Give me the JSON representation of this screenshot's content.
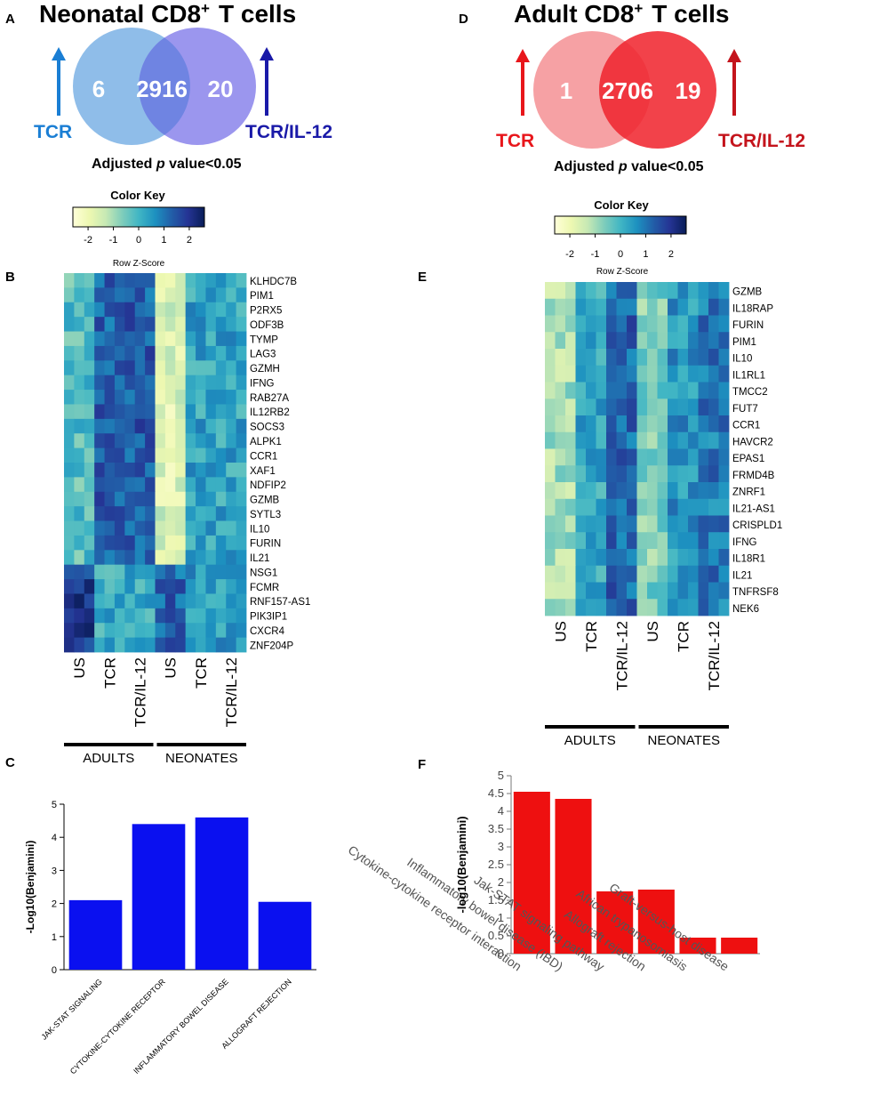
{
  "panels": {
    "a": "A",
    "b": "B",
    "c": "C",
    "d": "D",
    "e": "E",
    "f": "F"
  },
  "colors": {
    "tcr_neo": "#1a7ed4",
    "tcril12_neo": "#1a1aa8",
    "tcr_adult": "#e8161b",
    "tcril12_adult": "#c4141c",
    "bar_blue": "#0a10f0",
    "bar_red": "#ee1010",
    "venn_neo_left": "#8fbde9",
    "venn_neo_right": "#9b96ee",
    "venn_neo_mid": "#6f84e2",
    "venn_adult_left": "#f6a1a4",
    "venn_adult_right": "#f2424a",
    "venn_adult_mid": "#f0363f"
  },
  "venn_neonatal": {
    "title": "Neonatal CD8",
    "sup": "+",
    "title_suffix": "T cells",
    "left": "6",
    "overlap": "2916",
    "right": "20",
    "label_left": "TCR",
    "label_right": "TCR/IL-12",
    "pvalue_prefix": "Adjusted ",
    "pvalue_p": "p",
    "pvalue_suffix": " value<0.05"
  },
  "venn_adult": {
    "title": "Adult CD8",
    "sup": "+",
    "title_suffix": "T cells",
    "left": "1",
    "overlap": "2706",
    "right": "19",
    "label_left": "TCR",
    "label_right": "TCR/IL-12",
    "pvalue_prefix": "Adjusted ",
    "pvalue_p": "p",
    "pvalue_suffix": " value<0.05"
  },
  "color_key": {
    "title": "Color Key",
    "ticks": [
      "-2",
      "-1",
      "0",
      "1",
      "2"
    ],
    "xlabel": "Row Z-Score",
    "stops": [
      "#ffffd9",
      "#edf8b1",
      "#c7e9b4",
      "#7fcdbb",
      "#41b6c4",
      "#1d91c0",
      "#225ea8",
      "#253494",
      "#081d58"
    ]
  },
  "heatmap_b": {
    "genes": [
      "KLHDC7B",
      "PIM1",
      "P2RX5",
      "ODF3B",
      "TYMP",
      "LAG3",
      "GZMH",
      "IFNG",
      "RAB27A",
      "IL12RB2",
      "SOCS3",
      "ALPK1",
      "CCR1",
      "XAF1",
      "NDFIP2",
      "GZMB",
      "SYTL3",
      "IL10",
      "FURIN",
      "IL21",
      "NSG1",
      "FCMR",
      "RNF157-AS1",
      "PIK3IP1",
      "CXCR4",
      "ZNF204P"
    ],
    "columns": [
      "US",
      "TCR",
      "TCR/IL-12",
      "US",
      "TCR",
      "TCR/IL-12"
    ],
    "groups": [
      "ADULTS",
      "NEONATES"
    ]
  },
  "heatmap_e": {
    "genes": [
      "GZMB",
      "IL18RAP",
      "FURIN",
      "PIM1",
      "IL10",
      "IL1RL1",
      "TMCC2",
      "FUT7",
      "CCR1",
      "HAVCR2",
      "EPAS1",
      "FRMD4B",
      "ZNRF1",
      "IL21-AS1",
      "CRISPLD1",
      "IFNG",
      "IL18R1",
      "IL21",
      "TNFRSF8",
      "NEK6"
    ],
    "columns": [
      "US",
      "TCR",
      "TCR/IL-12",
      "US",
      "TCR",
      "TCR/IL-12"
    ],
    "groups": [
      "ADULTS",
      "NEONATES"
    ]
  },
  "chart_data": [
    {
      "type": "bar",
      "title": "",
      "xlabel": "",
      "ylabel": "-Log10(Benjamini)",
      "categories": [
        "JAK-STAT SIGNALING",
        "CYTOKINE-CYTOKINE RECEPTOR",
        "INFLAMMATORY BOWEL DISEASE",
        "ALLOGRAFT REJECTION"
      ],
      "values": [
        2.1,
        4.4,
        4.6,
        2.05
      ],
      "ylim": [
        0,
        5
      ],
      "yticks": [
        "0",
        "1",
        "2",
        "3",
        "4",
        "5"
      ]
    },
    {
      "type": "bar",
      "title": "",
      "xlabel": "",
      "ylabel": "-log10(Benjamini)",
      "categories": [
        "Cytokine-cytokine receptor interaction",
        "Inflammatory bowel disease (IBD)",
        "Jak-STAT signaling pathway",
        "Allograft rejection",
        "African trypanosomiasis",
        "Graft-versus-host disease"
      ],
      "values": [
        4.55,
        4.35,
        1.75,
        1.8,
        0.45,
        0.45
      ],
      "ylim": [
        0,
        5
      ],
      "yticks": [
        "0",
        "0.5",
        "1",
        "1.5",
        "2",
        "2.5",
        "3",
        "3.5",
        "4",
        "4.5",
        "5"
      ]
    }
  ]
}
